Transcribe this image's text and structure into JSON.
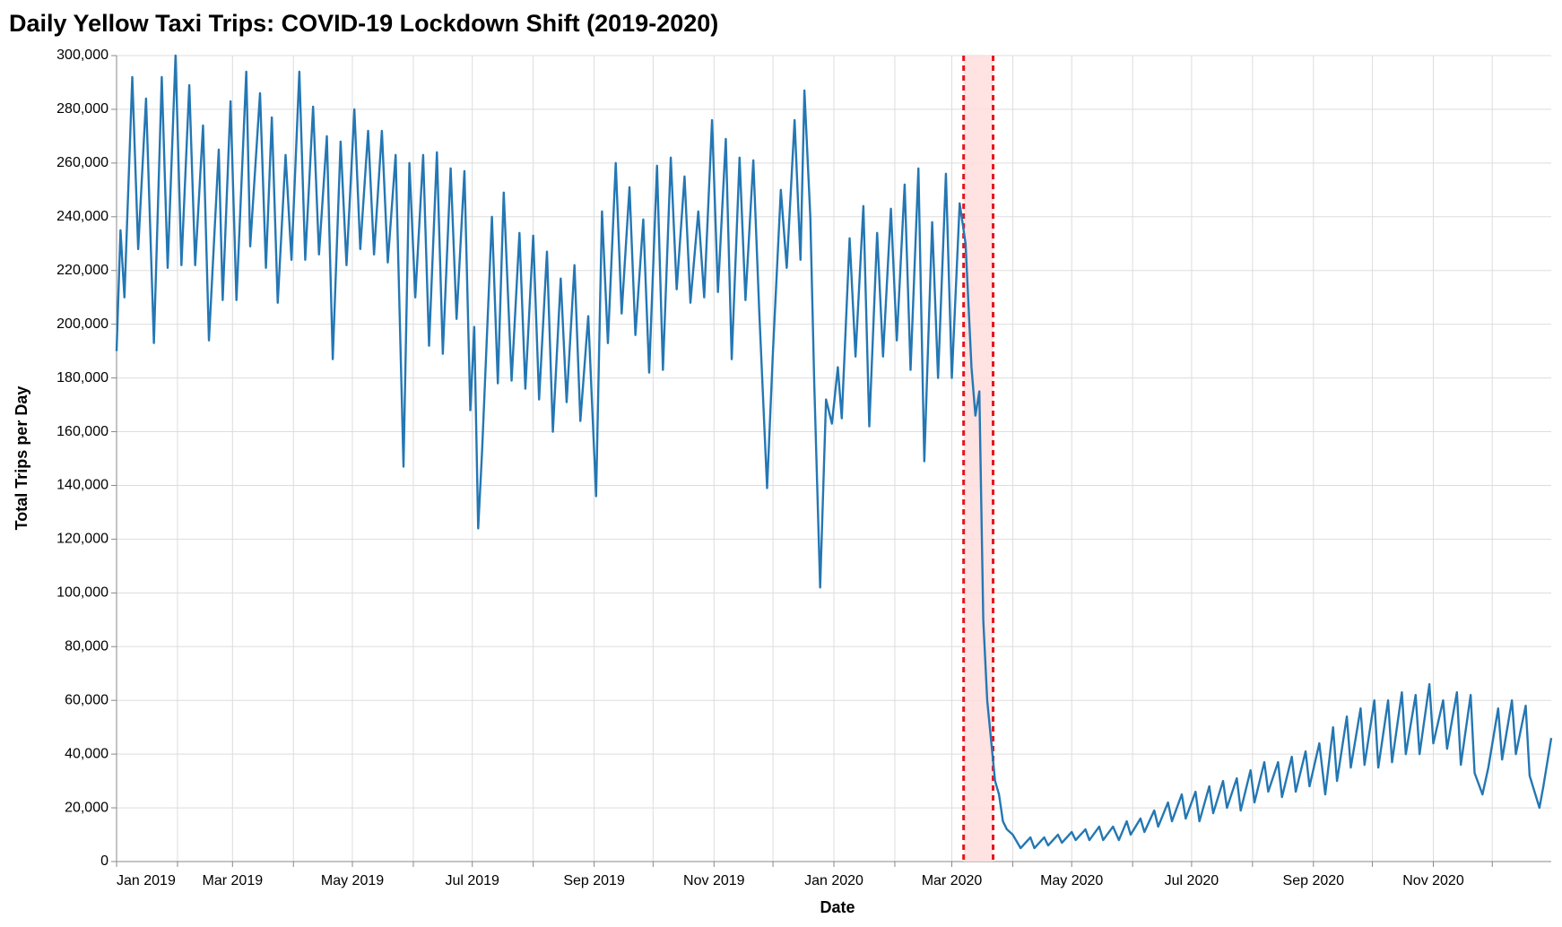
{
  "chart_data": {
    "type": "line",
    "title": "Daily Yellow Taxi Trips: COVID-19 Lockdown Shift (2019-2020)",
    "x_label": "Date",
    "y_label": "Total Trips per Day",
    "xlim": [
      "2019-01-01",
      "2020-12-31"
    ],
    "ylim": [
      0,
      300000
    ],
    "yticks": [
      0,
      {
        "value": 20000,
        "label": "20,000"
      },
      {
        "value": 40000,
        "label": "40,000"
      },
      {
        "value": 60000,
        "label": "60,000"
      },
      {
        "value": 80000,
        "label": "80,000"
      },
      {
        "value": 100000,
        "label": "100,000"
      },
      {
        "value": 120000,
        "label": "120,000"
      },
      {
        "value": 140000,
        "label": "140,000"
      },
      {
        "value": 160000,
        "label": "160,000"
      },
      {
        "value": 180000,
        "label": "180,000"
      },
      {
        "value": 200000,
        "label": "200,000"
      },
      {
        "value": 220000,
        "label": "220,000"
      },
      {
        "value": 240000,
        "label": "240,000"
      },
      {
        "value": 260000,
        "label": "260,000"
      },
      {
        "value": 280000,
        "label": "280,000"
      },
      {
        "value": 300000,
        "label": "300,000"
      }
    ],
    "xticks": [
      {
        "value": "2019-01-01",
        "label": "Jan 2019"
      },
      {
        "value": "2019-02-01",
        "label": null
      },
      {
        "value": "2019-03-01",
        "label": "Mar 2019"
      },
      {
        "value": "2019-04-01",
        "label": null
      },
      {
        "value": "2019-05-01",
        "label": "May 2019"
      },
      {
        "value": "2019-06-01",
        "label": null
      },
      {
        "value": "2019-07-01",
        "label": "Jul 2019"
      },
      {
        "value": "2019-08-01",
        "label": null
      },
      {
        "value": "2019-09-01",
        "label": "Sep 2019"
      },
      {
        "value": "2019-10-01",
        "label": null
      },
      {
        "value": "2019-11-01",
        "label": "Nov 2019"
      },
      {
        "value": "2019-12-01",
        "label": null
      },
      {
        "value": "2020-01-01",
        "label": "Jan 2020"
      },
      {
        "value": "2020-02-01",
        "label": null
      },
      {
        "value": "2020-03-01",
        "label": "Mar 2020"
      },
      {
        "value": "2020-04-01",
        "label": null
      },
      {
        "value": "2020-05-01",
        "label": "May 2020"
      },
      {
        "value": "2020-06-01",
        "label": null
      },
      {
        "value": "2020-07-01",
        "label": "Jul 2020"
      },
      {
        "value": "2020-08-01",
        "label": null
      },
      {
        "value": "2020-09-01",
        "label": "Sep 2020"
      },
      {
        "value": "2020-10-01",
        "label": null
      },
      {
        "value": "2020-11-01",
        "label": "Nov 2020"
      },
      {
        "value": "2020-12-01",
        "label": null
      }
    ],
    "grid": true,
    "shade": {
      "start": "2020-03-07",
      "end": "2020-03-22",
      "color": "#ffdddd",
      "line_color": "#e8141c"
    },
    "series": [
      {
        "name": "Total Trips per Day",
        "color": "#2477b3",
        "x": [
          "2019-01-01",
          "2019-01-03",
          "2019-01-05",
          "2019-01-09",
          "2019-01-12",
          "2019-01-16",
          "2019-01-20",
          "2019-01-24",
          "2019-01-27",
          "2019-01-31",
          "2019-02-03",
          "2019-02-07",
          "2019-02-10",
          "2019-02-14",
          "2019-02-17",
          "2019-02-22",
          "2019-02-24",
          "2019-02-28",
          "2019-03-03",
          "2019-03-08",
          "2019-03-10",
          "2019-03-15",
          "2019-03-18",
          "2019-03-21",
          "2019-03-24",
          "2019-03-28",
          "2019-03-31",
          "2019-04-04",
          "2019-04-07",
          "2019-04-11",
          "2019-04-14",
          "2019-04-18",
          "2019-04-21",
          "2019-04-25",
          "2019-04-28",
          "2019-05-02",
          "2019-05-05",
          "2019-05-09",
          "2019-05-12",
          "2019-05-16",
          "2019-05-19",
          "2019-05-23",
          "2019-05-27",
          "2019-05-30",
          "2019-06-02",
          "2019-06-06",
          "2019-06-09",
          "2019-06-13",
          "2019-06-16",
          "2019-06-20",
          "2019-06-23",
          "2019-06-27",
          "2019-06-30",
          "2019-07-02",
          "2019-07-04",
          "2019-07-06",
          "2019-07-11",
          "2019-07-14",
          "2019-07-17",
          "2019-07-21",
          "2019-07-25",
          "2019-07-28",
          "2019-08-01",
          "2019-08-04",
          "2019-08-08",
          "2019-08-11",
          "2019-08-15",
          "2019-08-18",
          "2019-08-22",
          "2019-08-25",
          "2019-08-29",
          "2019-09-02",
          "2019-09-05",
          "2019-09-08",
          "2019-09-12",
          "2019-09-15",
          "2019-09-19",
          "2019-09-22",
          "2019-09-26",
          "2019-09-29",
          "2019-10-03",
          "2019-10-06",
          "2019-10-10",
          "2019-10-13",
          "2019-10-17",
          "2019-10-20",
          "2019-10-24",
          "2019-10-27",
          "2019-10-31",
          "2019-11-03",
          "2019-11-07",
          "2019-11-10",
          "2019-11-14",
          "2019-11-17",
          "2019-11-21",
          "2019-11-24",
          "2019-11-28",
          "2019-12-01",
          "2019-12-05",
          "2019-12-08",
          "2019-12-12",
          "2019-12-15",
          "2019-12-17",
          "2019-12-20",
          "2019-12-22",
          "2019-12-25",
          "2019-12-28",
          "2019-12-31",
          "2020-01-03",
          "2020-01-05",
          "2020-01-09",
          "2020-01-12",
          "2020-01-16",
          "2020-01-19",
          "2020-01-23",
          "2020-01-26",
          "2020-01-30",
          "2020-02-02",
          "2020-02-06",
          "2020-02-09",
          "2020-02-13",
          "2020-02-16",
          "2020-02-20",
          "2020-02-23",
          "2020-02-27",
          "2020-03-01",
          "2020-03-05",
          "2020-03-08",
          "2020-03-11",
          "2020-03-13",
          "2020-03-15",
          "2020-03-17",
          "2020-03-19",
          "2020-03-21",
          "2020-03-23",
          "2020-03-25",
          "2020-03-27",
          "2020-03-29",
          "2020-04-01",
          "2020-04-05",
          "2020-04-10",
          "2020-04-12",
          "2020-04-17",
          "2020-04-19",
          "2020-04-24",
          "2020-04-26",
          "2020-05-01",
          "2020-05-03",
          "2020-05-08",
          "2020-05-10",
          "2020-05-15",
          "2020-05-17",
          "2020-05-22",
          "2020-05-25",
          "2020-05-29",
          "2020-05-31",
          "2020-06-05",
          "2020-06-07",
          "2020-06-12",
          "2020-06-14",
          "2020-06-19",
          "2020-06-21",
          "2020-06-26",
          "2020-06-28",
          "2020-07-03",
          "2020-07-05",
          "2020-07-10",
          "2020-07-12",
          "2020-07-17",
          "2020-07-19",
          "2020-07-24",
          "2020-07-26",
          "2020-07-31",
          "2020-08-02",
          "2020-08-07",
          "2020-08-09",
          "2020-08-14",
          "2020-08-16",
          "2020-08-21",
          "2020-08-23",
          "2020-08-28",
          "2020-08-30",
          "2020-09-04",
          "2020-09-07",
          "2020-09-11",
          "2020-09-13",
          "2020-09-18",
          "2020-09-20",
          "2020-09-25",
          "2020-09-27",
          "2020-10-02",
          "2020-10-04",
          "2020-10-09",
          "2020-10-11",
          "2020-10-16",
          "2020-10-18",
          "2020-10-23",
          "2020-10-25",
          "2020-10-30",
          "2020-11-01",
          "2020-11-06",
          "2020-11-08",
          "2020-11-13",
          "2020-11-15",
          "2020-11-20",
          "2020-11-22",
          "2020-11-26",
          "2020-11-29",
          "2020-12-04",
          "2020-12-06",
          "2020-12-11",
          "2020-12-13",
          "2020-12-18",
          "2020-12-20",
          "2020-12-25",
          "2020-12-27",
          "2020-12-31"
        ],
        "values": [
          190000,
          235000,
          210000,
          292000,
          228000,
          284000,
          193000,
          292000,
          221000,
          300000,
          222000,
          289000,
          222000,
          274000,
          194000,
          265000,
          209000,
          283000,
          209000,
          294000,
          229000,
          286000,
          221000,
          277000,
          208000,
          263000,
          224000,
          294000,
          224000,
          281000,
          226000,
          270000,
          187000,
          268000,
          222000,
          280000,
          228000,
          272000,
          226000,
          272000,
          223000,
          263000,
          147000,
          260000,
          210000,
          263000,
          192000,
          264000,
          189000,
          258000,
          202000,
          257000,
          168000,
          199000,
          124000,
          153000,
          240000,
          178000,
          249000,
          179000,
          234000,
          176000,
          233000,
          172000,
          227000,
          160000,
          217000,
          171000,
          222000,
          164000,
          203000,
          136000,
          242000,
          193000,
          260000,
          204000,
          251000,
          196000,
          239000,
          182000,
          259000,
          183000,
          262000,
          213000,
          255000,
          208000,
          242000,
          210000,
          276000,
          212000,
          269000,
          187000,
          262000,
          209000,
          261000,
          205000,
          139000,
          190000,
          250000,
          221000,
          276000,
          224000,
          287000,
          240000,
          178000,
          102000,
          172000,
          163000,
          184000,
          165000,
          232000,
          188000,
          244000,
          162000,
          234000,
          188000,
          243000,
          194000,
          252000,
          183000,
          258000,
          149000,
          238000,
          180000,
          256000,
          180000,
          245000,
          230000,
          184000,
          166000,
          175000,
          90000,
          60000,
          45000,
          30000,
          25000,
          15000,
          12000,
          10000,
          5000,
          9000,
          5000,
          9000,
          6000,
          10000,
          7000,
          11000,
          8000,
          12000,
          8000,
          13000,
          8000,
          13000,
          8000,
          15000,
          10000,
          16000,
          11000,
          19000,
          13000,
          22000,
          15000,
          25000,
          16000,
          26000,
          15000,
          28000,
          18000,
          30000,
          20000,
          31000,
          19000,
          34000,
          22000,
          37000,
          26000,
          37000,
          24000,
          39000,
          26000,
          41000,
          28000,
          44000,
          25000,
          50000,
          30000,
          54000,
          35000,
          57000,
          36000,
          60000,
          35000,
          60000,
          37000,
          63000,
          40000,
          62000,
          40000,
          66000,
          44000,
          60000,
          42000,
          63000,
          36000,
          62000,
          33000,
          25000,
          35000,
          57000,
          38000,
          60000,
          40000,
          58000,
          32000,
          20000,
          28000,
          46000
        ]
      }
    ]
  }
}
